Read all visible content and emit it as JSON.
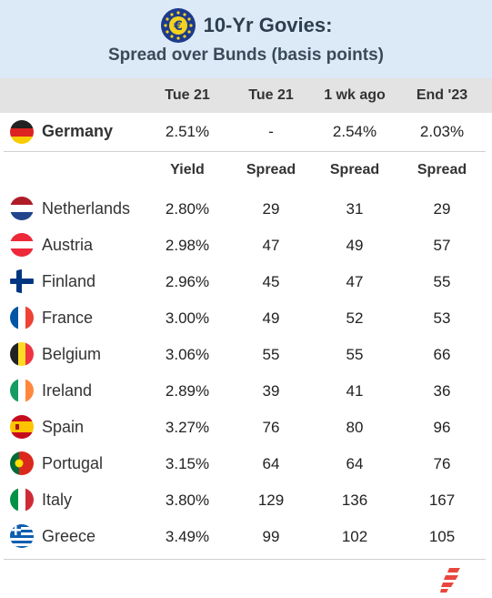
{
  "header": {
    "title": "10-Yr Govies:",
    "subtitle": "Spread over Bunds (basis points)",
    "logo_icon": "euro-coin-icon"
  },
  "columns": [
    "Tue 21",
    "Tue 21",
    "1 wk ago",
    "End '23"
  ],
  "benchmark": {
    "name": "Germany",
    "values": [
      "2.51%",
      "-",
      "2.54%",
      "2.03%"
    ]
  },
  "subheaders": [
    "Yield",
    "Spread",
    "Spread",
    "Spread"
  ],
  "rows": [
    {
      "name": "Netherlands",
      "values": [
        "2.80%",
        "29",
        "31",
        "29"
      ]
    },
    {
      "name": "Austria",
      "values": [
        "2.98%",
        "47",
        "49",
        "57"
      ]
    },
    {
      "name": "Finland",
      "values": [
        "2.96%",
        "45",
        "47",
        "55"
      ]
    },
    {
      "name": "France",
      "values": [
        "3.00%",
        "49",
        "52",
        "53"
      ]
    },
    {
      "name": "Belgium",
      "values": [
        "3.06%",
        "55",
        "55",
        "66"
      ]
    },
    {
      "name": "Ireland",
      "values": [
        "2.89%",
        "39",
        "41",
        "36"
      ]
    },
    {
      "name": "Spain",
      "values": [
        "3.27%",
        "76",
        "80",
        "96"
      ]
    },
    {
      "name": "Portugal",
      "values": [
        "3.15%",
        "64",
        "64",
        "76"
      ]
    },
    {
      "name": "Italy",
      "values": [
        "3.80%",
        "129",
        "136",
        "167"
      ]
    },
    {
      "name": "Greece",
      "values": [
        "3.49%",
        "99",
        "102",
        "105"
      ]
    }
  ],
  "colors": {
    "header_bg": "#dce9f6",
    "colhead_bg": "#e3e3e3",
    "brand": "#e8473e"
  }
}
